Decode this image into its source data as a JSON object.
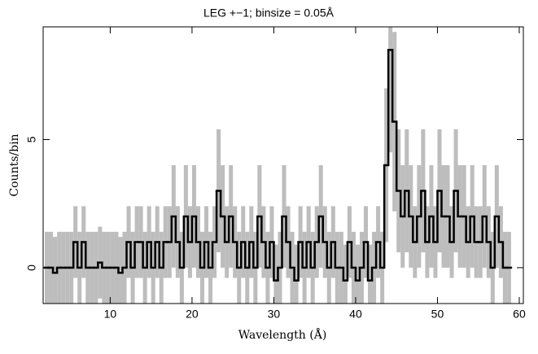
{
  "chart_data": {
    "type": "histogram",
    "title": "LEG +−1; binsize = 0.05Å",
    "xlabel": "Wavelength (Å)",
    "ylabel": "Counts/bin",
    "bins": [
      2,
      2.5,
      3,
      3.5,
      4,
      4.5,
      5,
      5.5,
      6,
      6.5,
      7,
      7.5,
      8,
      8.5,
      9,
      9.5,
      10,
      10.5,
      11,
      11.5,
      12,
      12.5,
      13,
      13.5,
      14,
      14.5,
      15,
      15.5,
      16,
      16.5,
      17,
      17.5,
      18,
      18.5,
      19,
      19.5,
      20,
      20.5,
      21,
      21.5,
      22,
      22.5,
      23,
      23.5,
      24,
      24.5,
      25,
      25.5,
      26,
      26.5,
      27,
      27.5,
      28,
      28.5,
      29,
      29.5,
      30,
      30.5,
      31,
      31.5,
      32,
      32.5,
      33,
      33.5,
      34,
      34.5,
      35,
      35.5,
      36,
      36.5,
      37,
      37.5,
      38,
      38.5,
      39,
      39.5,
      40,
      40.5,
      41,
      41.5,
      42,
      42.5,
      43,
      43.5,
      44,
      44.5,
      45,
      45.5,
      46,
      46.5,
      47,
      47.5,
      48,
      48.5,
      49,
      49.5,
      50,
      50.5,
      51,
      51.5,
      52,
      52.5,
      53,
      53.5,
      54,
      54.5,
      55,
      55.5,
      56,
      56.5,
      57,
      57.5,
      58,
      58.5,
      59
    ],
    "values": [
      0,
      0,
      -0.2,
      0,
      0,
      0,
      0,
      1,
      0,
      1,
      0,
      0,
      0,
      0.2,
      0,
      0,
      0,
      0,
      -0.2,
      0,
      1,
      0,
      1,
      1,
      0,
      1,
      0,
      1,
      0,
      1,
      1,
      2,
      1,
      0,
      2,
      1,
      2,
      1,
      0,
      1,
      0,
      1,
      3,
      2,
      1,
      2,
      1,
      0,
      1,
      0,
      1,
      0,
      2,
      1,
      0,
      1,
      -0.5,
      0,
      2,
      1,
      0,
      -0.5,
      1,
      0,
      1,
      0,
      1,
      2,
      1,
      0,
      1,
      0,
      0,
      -0.5,
      1,
      0,
      -0.5,
      0,
      1,
      -0.5,
      0,
      1,
      0,
      4,
      8.5,
      5.7,
      3,
      2,
      3,
      2,
      1,
      2,
      3,
      1,
      2,
      1,
      3,
      2,
      2,
      1,
      3,
      2,
      2,
      1,
      2,
      1,
      1,
      2,
      1,
      0,
      2,
      1,
      0,
      0
    ],
    "errors": [
      1.4,
      1.4,
      1.4,
      1.4,
      1.4,
      1.4,
      1.4,
      1.4,
      1.4,
      1.4,
      1.4,
      1.4,
      1.4,
      1.4,
      1.4,
      1.4,
      1.4,
      1.4,
      1.4,
      1.4,
      1.4,
      1.4,
      1.4,
      1.4,
      1.4,
      1.4,
      1.4,
      1.4,
      1.4,
      1.4,
      1.4,
      2,
      1.4,
      1.4,
      2,
      1.4,
      2,
      1.4,
      1.4,
      1.4,
      1.4,
      1.4,
      2.4,
      2,
      1.4,
      2,
      1.4,
      1.4,
      1.4,
      1.4,
      1.4,
      1.4,
      2,
      1.4,
      1.4,
      1.4,
      1.4,
      1.4,
      2,
      1.4,
      1.4,
      1.4,
      1.4,
      1.4,
      1.4,
      1.4,
      1.4,
      2,
      1.4,
      1.4,
      1.4,
      1.4,
      1.4,
      1.4,
      1.4,
      1.4,
      1.4,
      1.4,
      1.4,
      1.4,
      1.4,
      1.4,
      1.4,
      3,
      4,
      3.5,
      2.4,
      2,
      2.4,
      2,
      1.4,
      2,
      2.4,
      1.4,
      2,
      1.4,
      2.4,
      2,
      2,
      1.4,
      2.4,
      2,
      2,
      1.4,
      2,
      1.4,
      1.4,
      2,
      1.4,
      1.4,
      2,
      1.4,
      1.4,
      1.4
    ],
    "color": "#000000",
    "error_color": "#bdbdbd",
    "xlim": [
      1.8,
      60.5
    ],
    "ylim": [
      -1.4,
      9.4
    ],
    "xticks": [
      10,
      20,
      30,
      40,
      50,
      60
    ],
    "yticks": [
      0,
      5
    ]
  }
}
